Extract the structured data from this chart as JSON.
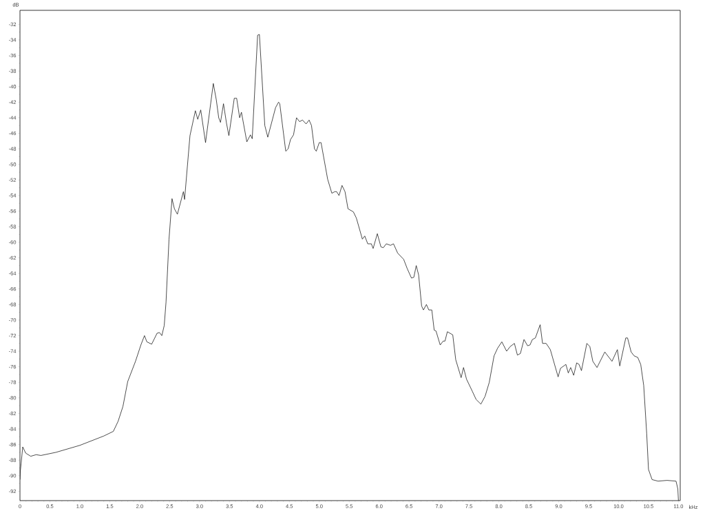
{
  "chart_data": {
    "type": "line",
    "xlabel": "kHz",
    "ylabel": "dB",
    "color": "#000000",
    "marker": "none",
    "xlim": [
      0,
      11.03
    ],
    "ylim": [
      -93.2,
      -30.2
    ],
    "xticks": [
      0,
      0.5,
      {
        "value": 1,
        "label": "1.0"
      },
      1.5,
      {
        "value": 2,
        "label": "2.0"
      },
      2.5,
      {
        "value": 3,
        "label": "3.0"
      },
      3.5,
      {
        "value": 4,
        "label": "4.0"
      },
      4.5,
      {
        "value": 5,
        "label": "5.0"
      },
      5.5,
      {
        "value": 6,
        "label": "6.0"
      },
      6.5,
      {
        "value": 7,
        "label": "7.0"
      },
      7.5,
      {
        "value": 8,
        "label": "8.0"
      },
      8.5,
      {
        "value": 9,
        "label": "9.0"
      },
      9.5,
      {
        "value": 10,
        "label": "10.0"
      },
      10.5,
      {
        "value": 11,
        "label": "11.0"
      }
    ],
    "yticks": [
      -92,
      -90,
      -88,
      -86,
      -84,
      -82,
      -80,
      -78,
      -76,
      -74,
      -72,
      -70,
      -68,
      -66,
      -64,
      -62,
      -60,
      -58,
      -56,
      -54,
      -52,
      -50,
      -48,
      -46,
      -44,
      -42,
      -40,
      -38,
      -36,
      -34,
      -32
    ],
    "x": [
      0.0,
      0.006,
      0.02,
      0.046,
      0.096,
      0.18,
      0.27,
      0.35,
      0.6,
      1.0,
      1.4,
      1.56,
      1.64,
      1.72,
      1.8,
      1.93,
      2.02,
      2.08,
      2.12,
      2.2,
      2.29,
      2.33,
      2.37,
      2.41,
      2.44,
      2.49,
      2.54,
      2.58,
      2.63,
      2.73,
      2.75,
      2.84,
      2.93,
      2.97,
      3.02,
      3.1,
      3.23,
      3.28,
      3.32,
      3.35,
      3.4,
      3.45,
      3.49,
      3.58,
      3.62,
      3.67,
      3.7,
      3.79,
      3.85,
      3.88,
      3.97,
      4.0,
      4.09,
      4.14,
      4.27,
      4.32,
      4.34,
      4.44,
      4.48,
      4.52,
      4.57,
      4.62,
      4.67,
      4.72,
      4.78,
      4.83,
      4.87,
      4.92,
      4.95,
      5.0,
      5.03,
      5.14,
      5.21,
      5.26,
      5.29,
      5.33,
      5.38,
      5.43,
      5.48,
      5.57,
      5.62,
      5.72,
      5.76,
      5.81,
      5.87,
      5.9,
      5.97,
      6.03,
      6.07,
      6.12,
      6.19,
      6.24,
      6.31,
      6.41,
      6.47,
      6.54,
      6.58,
      6.62,
      6.66,
      6.71,
      6.74,
      6.79,
      6.83,
      6.88,
      6.92,
      6.95,
      7.02,
      7.07,
      7.1,
      7.14,
      7.23,
      7.28,
      7.37,
      7.41,
      7.46,
      7.56,
      7.62,
      7.7,
      7.77,
      7.84,
      7.92,
      7.98,
      8.05,
      8.13,
      8.19,
      8.26,
      8.31,
      8.36,
      8.42,
      8.48,
      8.52,
      8.56,
      8.61,
      8.69,
      8.73,
      8.79,
      8.86,
      8.99,
      9.03,
      9.12,
      9.16,
      9.2,
      9.25,
      9.3,
      9.34,
      9.38,
      9.47,
      9.52,
      9.57,
      9.64,
      9.77,
      9.89,
      9.98,
      10.02,
      10.12,
      10.15,
      10.21,
      10.26,
      10.32,
      10.37,
      10.42,
      10.47,
      10.5,
      10.56,
      10.66,
      10.81,
      10.96,
      10.99,
      11.0
    ],
    "values": [
      -90.5,
      -89.4,
      -88.4,
      -86.3,
      -87.1,
      -87.5,
      -87.3,
      -87.4,
      -87.0,
      -86.1,
      -84.9,
      -84.3,
      -83.0,
      -81.1,
      -77.9,
      -75.3,
      -73.2,
      -72.0,
      -72.8,
      -73.1,
      -71.7,
      -71.6,
      -72.0,
      -70.7,
      -67.7,
      -59.6,
      -54.4,
      -55.7,
      -56.4,
      -53.5,
      -54.5,
      -46.3,
      -43.1,
      -44.2,
      -43.0,
      -47.2,
      -39.6,
      -41.7,
      -44.0,
      -44.6,
      -42.2,
      -44.7,
      -46.3,
      -41.5,
      -41.5,
      -44.0,
      -43.3,
      -47.1,
      -46.2,
      -46.7,
      -33.4,
      -33.3,
      -45.0,
      -46.5,
      -42.7,
      -42.0,
      -42.2,
      -48.3,
      -48.0,
      -46.8,
      -46.2,
      -44.0,
      -44.5,
      -44.3,
      -44.8,
      -44.3,
      -45.0,
      -48.0,
      -48.3,
      -47.2,
      -47.2,
      -51.9,
      -53.7,
      -53.5,
      -53.5,
      -54.0,
      -52.7,
      -53.5,
      -55.7,
      -56.1,
      -56.9,
      -59.6,
      -59.2,
      -60.2,
      -60.2,
      -60.8,
      -58.9,
      -60.6,
      -60.7,
      -60.2,
      -60.4,
      -60.2,
      -61.4,
      -62.2,
      -63.4,
      -64.6,
      -64.5,
      -63.0,
      -64.2,
      -68.2,
      -68.7,
      -68.0,
      -68.7,
      -68.7,
      -71.3,
      -71.4,
      -73.2,
      -72.7,
      -72.7,
      -71.5,
      -71.9,
      -75.1,
      -77.4,
      -76.1,
      -77.6,
      -79.2,
      -80.2,
      -80.8,
      -79.8,
      -78.0,
      -74.6,
      -73.6,
      -72.8,
      -74.0,
      -73.4,
      -73.0,
      -74.5,
      -74.3,
      -72.5,
      -73.3,
      -73.2,
      -72.5,
      -72.3,
      -70.6,
      -73.0,
      -73.0,
      -73.8,
      -77.3,
      -76.2,
      -75.7,
      -76.8,
      -76.1,
      -77.1,
      -75.5,
      -75.7,
      -76.5,
      -73.0,
      -73.4,
      -75.3,
      -76.1,
      -74.1,
      -75.3,
      -73.8,
      -75.9,
      -72.3,
      -72.3,
      -74.1,
      -74.6,
      -74.8,
      -75.7,
      -78.4,
      -84.6,
      -89.2,
      -90.5,
      -90.7,
      -90.6,
      -90.7,
      -91.7,
      -93.2
    ]
  }
}
